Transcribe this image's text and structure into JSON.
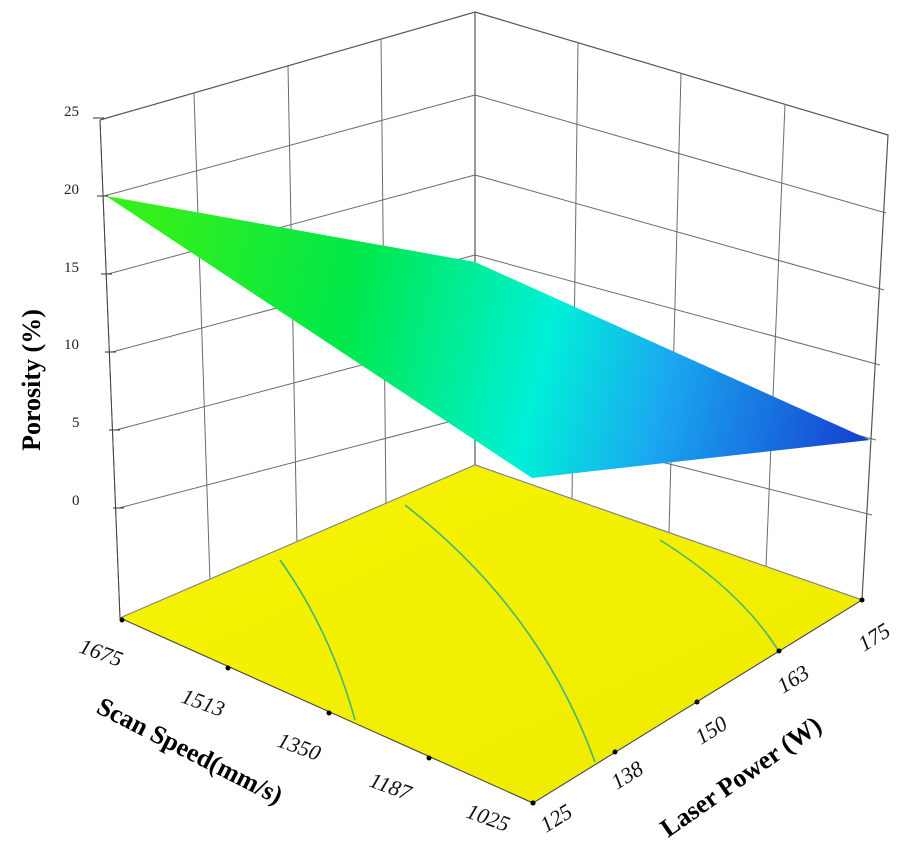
{
  "chart_data": {
    "type": "surface3d",
    "title": "",
    "zlabel": "Porosity (%)",
    "xlabel": "Scan Speed(mm/s)",
    "ylabel": "Laser Power (W)",
    "z_ticks": [
      "0",
      "5",
      "10",
      "15",
      "20",
      "25"
    ],
    "x_ticks": [
      "1675",
      "1513",
      "1350",
      "1187",
      "1025"
    ],
    "y_ticks": [
      "125",
      "138",
      "150",
      "163",
      "175"
    ],
    "zlim": [
      0,
      25
    ],
    "xlim": [
      1025,
      1675
    ],
    "ylim": [
      125,
      175
    ],
    "grid": true,
    "colormap": "yellow-green-cyan-blue",
    "floor_color": "#f5f500",
    "surface_corners": [
      {
        "scan_speed": 1675,
        "laser_power": 125,
        "porosity": 20
      },
      {
        "scan_speed": 1675,
        "laser_power": 175,
        "porosity": 16
      },
      {
        "scan_speed": 1025,
        "laser_power": 125,
        "porosity": 3
      },
      {
        "scan_speed": 1025,
        "laser_power": 175,
        "porosity": 6
      }
    ]
  }
}
